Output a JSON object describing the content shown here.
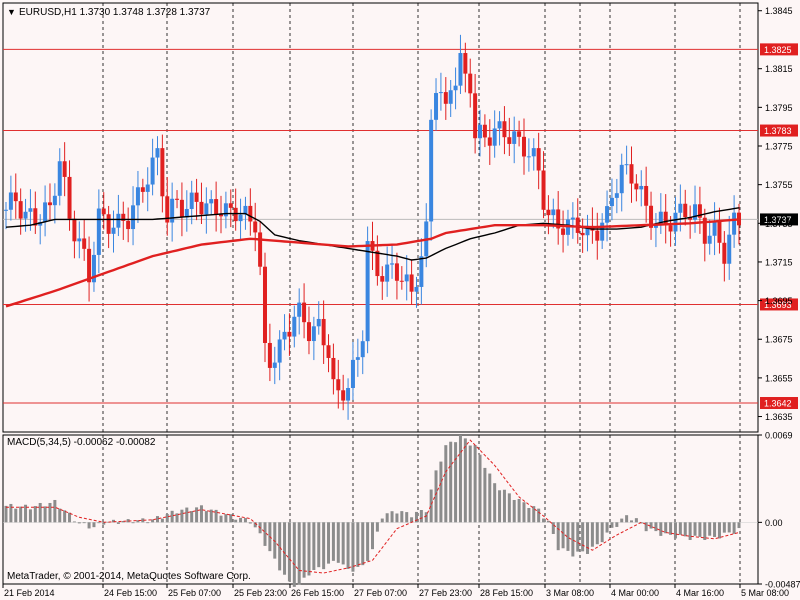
{
  "header": {
    "dropdown_glyph": "▼",
    "symbol_info": "EURUSD,H1  1.3730 1.3748 1.3728 1.3737"
  },
  "footer": {
    "copyright": "MetaTrader, © 2001-2014, MetaQuotes Software Corp."
  },
  "colors": {
    "background": "#fdf6f6",
    "frame": "#000000",
    "bull": "#3a86e0",
    "bear": "#e02020",
    "level_line": "#e03030",
    "level_label_bg": "#e02020",
    "ma_fast": "#000000",
    "ma_slow": "#e02020",
    "macd_bar": "#8c8c8c",
    "signal": "#e02020",
    "current_price_line": "#bbbbbb",
    "current_price_label_bg": "#000000"
  },
  "chart_data": [
    {
      "type": "candlestick",
      "title": "EURUSD,H1",
      "ohlc_readout": {
        "open": 1.373,
        "high": 1.3748,
        "low": 1.3728,
        "close": 1.3737
      },
      "ylim": [
        1.3627,
        1.3849
      ],
      "y_ticks": [
        "1.3845",
        "1.3815",
        "1.3795",
        "1.3775",
        "1.3755",
        "1.3735",
        "1.3715",
        "1.3695",
        "1.3675",
        "1.3655",
        "1.3635"
      ],
      "price_levels": [
        {
          "label": "1.3825",
          "value": 1.3825
        },
        {
          "label": "1.3783",
          "value": 1.3783
        },
        {
          "label": "1.3693",
          "value": 1.3693
        },
        {
          "label": "1.3642",
          "value": 1.3642
        }
      ],
      "current_price": {
        "label": "1.3737",
        "value": 1.3737
      },
      "x_labels": [
        "21 Feb 2014",
        "24 Feb 15:00",
        "25 Feb 07:00",
        "25 Feb 23:00",
        "26 Feb 15:00",
        "27 Feb 07:00",
        "27 Feb 23:00",
        "28 Feb 15:00",
        "3 Mar 08:00",
        "4 Mar 00:00",
        "4 Mar 16:00",
        "5 Mar 08:00"
      ],
      "series": [
        {
          "name": "",
          "kind": "close_path",
          "points": [
            [
              0,
              1.3742
            ],
            [
              2,
              1.3748
            ],
            [
              4,
              1.3738
            ],
            [
              6,
              1.3738
            ],
            [
              9,
              1.3742
            ],
            [
              11,
              1.3768
            ],
            [
              13,
              1.3738
            ],
            [
              15,
              1.3725
            ],
            [
              17,
              1.3708
            ],
            [
              19,
              1.3738
            ],
            [
              21,
              1.3735
            ],
            [
              23,
              1.3734
            ],
            [
              25,
              1.3738
            ],
            [
              27,
              1.3748
            ],
            [
              29,
              1.376
            ],
            [
              31,
              1.377
            ],
            [
              33,
              1.3738
            ],
            [
              35,
              1.3746
            ],
            [
              37,
              1.3742
            ],
            [
              39,
              1.3748
            ],
            [
              41,
              1.3742
            ],
            [
              43,
              1.3744
            ],
            [
              45,
              1.374
            ],
            [
              47,
              1.3742
            ],
            [
              49,
              1.3738
            ],
            [
              51,
              1.3736
            ],
            [
              52,
              1.371
            ],
            [
              53,
              1.3668
            ],
            [
              54,
              1.3664
            ],
            [
              56,
              1.367
            ],
            [
              58,
              1.3682
            ],
            [
              59,
              1.3688
            ],
            [
              60,
              1.3688
            ],
            [
              62,
              1.368
            ],
            [
              64,
              1.368
            ],
            [
              66,
              1.367
            ],
            [
              67,
              1.365
            ],
            [
              68,
              1.3645
            ],
            [
              70,
              1.3652
            ],
            [
              72,
              1.3665
            ],
            [
              73,
              1.368
            ],
            [
              74,
              1.3725
            ],
            [
              75,
              1.3715
            ],
            [
              76,
              1.371
            ],
            [
              78,
              1.371
            ],
            [
              80,
              1.371
            ],
            [
              81,
              1.3708
            ],
            [
              83,
              1.3698
            ],
            [
              85,
              1.3718
            ],
            [
              86,
              1.373
            ],
            [
              87,
              1.379
            ],
            [
              88,
              1.3808
            ],
            [
              89,
              1.38
            ],
            [
              90,
              1.3792
            ],
            [
              91,
              1.3808
            ],
            [
              92,
              1.381
            ],
            [
              93,
              1.3818
            ],
            [
              94,
              1.381
            ],
            [
              95,
              1.3808
            ],
            [
              96,
              1.378
            ],
            [
              98,
              1.378
            ],
            [
              100,
              1.3782
            ],
            [
              102,
              1.3783
            ],
            [
              104,
              1.3778
            ],
            [
              106,
              1.3775
            ],
            [
              108,
              1.3768
            ],
            [
              109,
              1.3762
            ],
            [
              110,
              1.3748
            ],
            [
              111,
              1.3738
            ],
            [
              113,
              1.3735
            ],
            [
              115,
              1.3733
            ],
            [
              117,
              1.3735
            ],
            [
              119,
              1.3728
            ],
            [
              121,
              1.3732
            ],
            [
              123,
              1.3738
            ],
            [
              124,
              1.375
            ],
            [
              126,
              1.3762
            ],
            [
              128,
              1.376
            ],
            [
              129,
              1.3756
            ],
            [
              131,
              1.3742
            ],
            [
              133,
              1.3735
            ],
            [
              135,
              1.3735
            ],
            [
              137,
              1.3738
            ],
            [
              139,
              1.3742
            ],
            [
              141,
              1.374
            ],
            [
              143,
              1.373
            ],
            [
              145,
              1.373
            ],
            [
              147,
              1.372
            ],
            [
              149,
              1.3735
            ],
            [
              150,
              1.3737
            ]
          ]
        },
        {
          "name": "",
          "kind": "moving_average",
          "points": [
            [
              0,
              1.3733
            ],
            [
              5,
              1.3734
            ],
            [
              10,
              1.3737
            ],
            [
              20,
              1.3737
            ],
            [
              30,
              1.3737
            ],
            [
              40,
              1.3739
            ],
            [
              45,
              1.374
            ],
            [
              49,
              1.374
            ],
            [
              52,
              1.3736
            ],
            [
              55,
              1.3729
            ],
            [
              60,
              1.3726
            ],
            [
              65,
              1.3724
            ],
            [
              70,
              1.3722
            ],
            [
              75,
              1.372
            ],
            [
              80,
              1.3718
            ],
            [
              83,
              1.3716
            ],
            [
              86,
              1.3717
            ],
            [
              90,
              1.3722
            ],
            [
              95,
              1.3727
            ],
            [
              100,
              1.373
            ],
            [
              105,
              1.3734
            ],
            [
              110,
              1.3735
            ],
            [
              115,
              1.3734
            ],
            [
              120,
              1.3732
            ],
            [
              125,
              1.3732
            ],
            [
              130,
              1.3733
            ],
            [
              135,
              1.3736
            ],
            [
              140,
              1.3738
            ],
            [
              145,
              1.3741
            ],
            [
              150,
              1.3743
            ]
          ]
        },
        {
          "name": "",
          "kind": "moving_average",
          "points": [
            [
              0,
              1.3692
            ],
            [
              10,
              1.37
            ],
            [
              20,
              1.3709
            ],
            [
              30,
              1.3718
            ],
            [
              40,
              1.3724
            ],
            [
              50,
              1.3727
            ],
            [
              55,
              1.3726
            ],
            [
              60,
              1.3725
            ],
            [
              70,
              1.3723
            ],
            [
              80,
              1.3724
            ],
            [
              87,
              1.3727
            ],
            [
              90,
              1.373
            ],
            [
              95,
              1.3732
            ],
            [
              100,
              1.3734
            ],
            [
              110,
              1.3734
            ],
            [
              120,
              1.3733
            ],
            [
              130,
              1.3734
            ],
            [
              140,
              1.3735
            ],
            [
              150,
              1.3737
            ]
          ]
        }
      ]
    },
    {
      "type": "bar",
      "title": "MACD(5,34,5) -0.00062 -0.00082",
      "ylim": [
        -0.00487,
        0.0069
      ],
      "y_ticks": [
        "0.0069",
        "0.00",
        "-0.00487"
      ],
      "x_labels": [],
      "series": [
        {
          "name": "",
          "kind": "histogram",
          "points": [
            [
              0,
              0.0013
            ],
            [
              5,
              0.0012
            ],
            [
              10,
              0.0016
            ],
            [
              13,
              0.0006
            ],
            [
              15,
              -0.0001
            ],
            [
              18,
              -0.0004
            ],
            [
              20,
              0.0
            ],
            [
              25,
              0.0001
            ],
            [
              30,
              0.0002
            ],
            [
              35,
              0.0009
            ],
            [
              40,
              0.0012
            ],
            [
              45,
              0.0006
            ],
            [
              50,
              0.0001
            ],
            [
              52,
              -0.001
            ],
            [
              55,
              -0.003
            ],
            [
              58,
              -0.0048
            ],
            [
              60,
              -0.005
            ],
            [
              62,
              -0.004
            ],
            [
              65,
              -0.0035
            ],
            [
              68,
              -0.003
            ],
            [
              70,
              -0.0038
            ],
            [
              73,
              -0.0035
            ],
            [
              75,
              -0.0022
            ],
            [
              77,
              0.0005
            ],
            [
              80,
              0.0009
            ],
            [
              83,
              0.0006
            ],
            [
              86,
              0.001
            ],
            [
              88,
              0.004
            ],
            [
              90,
              0.006
            ],
            [
              93,
              0.0068
            ],
            [
              96,
              0.006
            ],
            [
              98,
              0.0045
            ],
            [
              100,
              0.003
            ],
            [
              103,
              0.0022
            ],
            [
              106,
              0.0015
            ],
            [
              109,
              0.001
            ],
            [
              111,
              0.0
            ],
            [
              113,
              -0.002
            ],
            [
              116,
              -0.0025
            ],
            [
              119,
              -0.0023
            ],
            [
              121,
              -0.0018
            ],
            [
              124,
              -0.0005
            ],
            [
              127,
              0.0005
            ],
            [
              129,
              0.0002
            ],
            [
              131,
              -0.0005
            ],
            [
              135,
              -0.001
            ],
            [
              140,
              -0.0012
            ],
            [
              145,
              -0.0012
            ],
            [
              150,
              -0.0006
            ]
          ]
        },
        {
          "name": "",
          "kind": "signal",
          "points": [
            [
              0,
              0.0012
            ],
            [
              10,
              0.0012
            ],
            [
              15,
              0.0004
            ],
            [
              20,
              0.0
            ],
            [
              30,
              0.0002
            ],
            [
              40,
              0.001
            ],
            [
              50,
              0.0003
            ],
            [
              55,
              -0.0015
            ],
            [
              60,
              -0.0038
            ],
            [
              65,
              -0.004
            ],
            [
              70,
              -0.0036
            ],
            [
              75,
              -0.003
            ],
            [
              80,
              -0.0005
            ],
            [
              86,
              0.0005
            ],
            [
              90,
              0.004
            ],
            [
              95,
              0.0065
            ],
            [
              100,
              0.0045
            ],
            [
              105,
              0.002
            ],
            [
              110,
              0.0005
            ],
            [
              115,
              -0.0012
            ],
            [
              120,
              -0.0022
            ],
            [
              125,
              -0.001
            ],
            [
              130,
              0.0
            ],
            [
              135,
              -0.0008
            ],
            [
              140,
              -0.0011
            ],
            [
              145,
              -0.0013
            ],
            [
              150,
              -0.0008
            ]
          ]
        }
      ]
    }
  ]
}
